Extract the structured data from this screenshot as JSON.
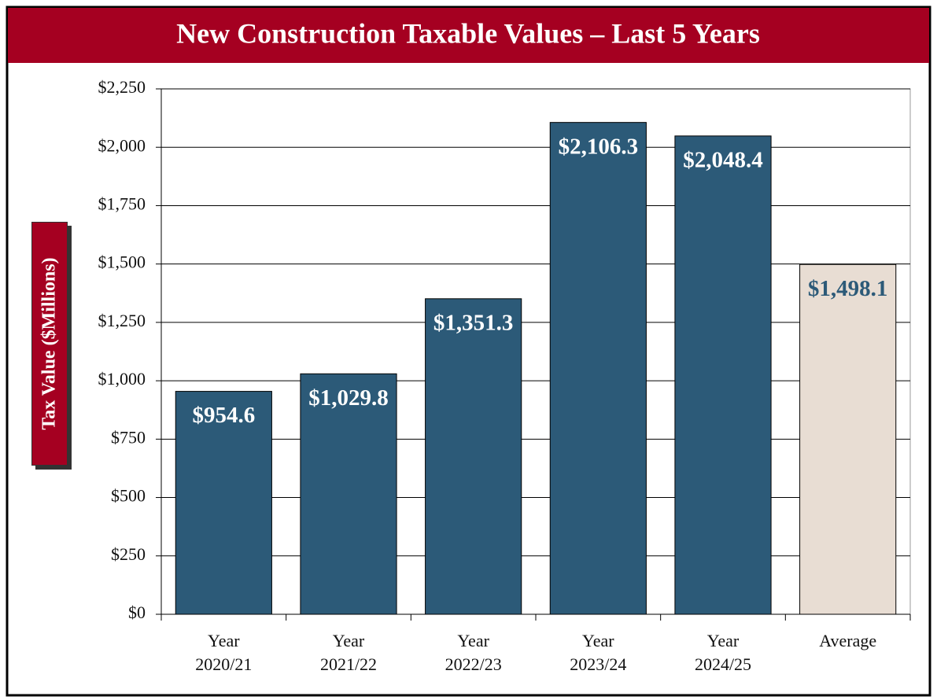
{
  "chart_data": {
    "type": "bar",
    "title": "New Construction Taxable Values – Last 5 Years",
    "y_label": "Tax Value ($Millions)",
    "categories": [
      "Year\n2020/21",
      "Year\n2021/22",
      "Year\n2022/23",
      "Year\n2023/24",
      "Year\n2024/25",
      "Average"
    ],
    "values": [
      954.6,
      1029.8,
      1351.3,
      2106.3,
      2048.4,
      1498.1
    ],
    "value_labels": [
      "$954.6",
      "$1,029.8",
      "$1,351.3",
      "$2,106.3",
      "$2,048.4",
      "$1,498.1"
    ],
    "colors": [
      "#2c5a78",
      "#2c5a78",
      "#2c5a78",
      "#2c5a78",
      "#2c5a78",
      "#e8ddd3"
    ],
    "value_label_colors": [
      "#ffffff",
      "#ffffff",
      "#ffffff",
      "#ffffff",
      "#ffffff",
      "#2c5a78"
    ],
    "ylim": [
      0,
      2250
    ],
    "yticks": [
      {
        "value": 0,
        "label": "$0"
      },
      {
        "value": 250,
        "label": "$250"
      },
      {
        "value": 500,
        "label": "$500"
      },
      {
        "value": 750,
        "label": "$750"
      },
      {
        "value": 1000,
        "label": "$1,000"
      },
      {
        "value": 1250,
        "label": "$1,250"
      },
      {
        "value": 1500,
        "label": "$1,500"
      },
      {
        "value": 1750,
        "label": "$1,750"
      },
      {
        "value": 2000,
        "label": "$2,000"
      },
      {
        "value": 2250,
        "label": "$2,250"
      }
    ],
    "grid": true
  }
}
